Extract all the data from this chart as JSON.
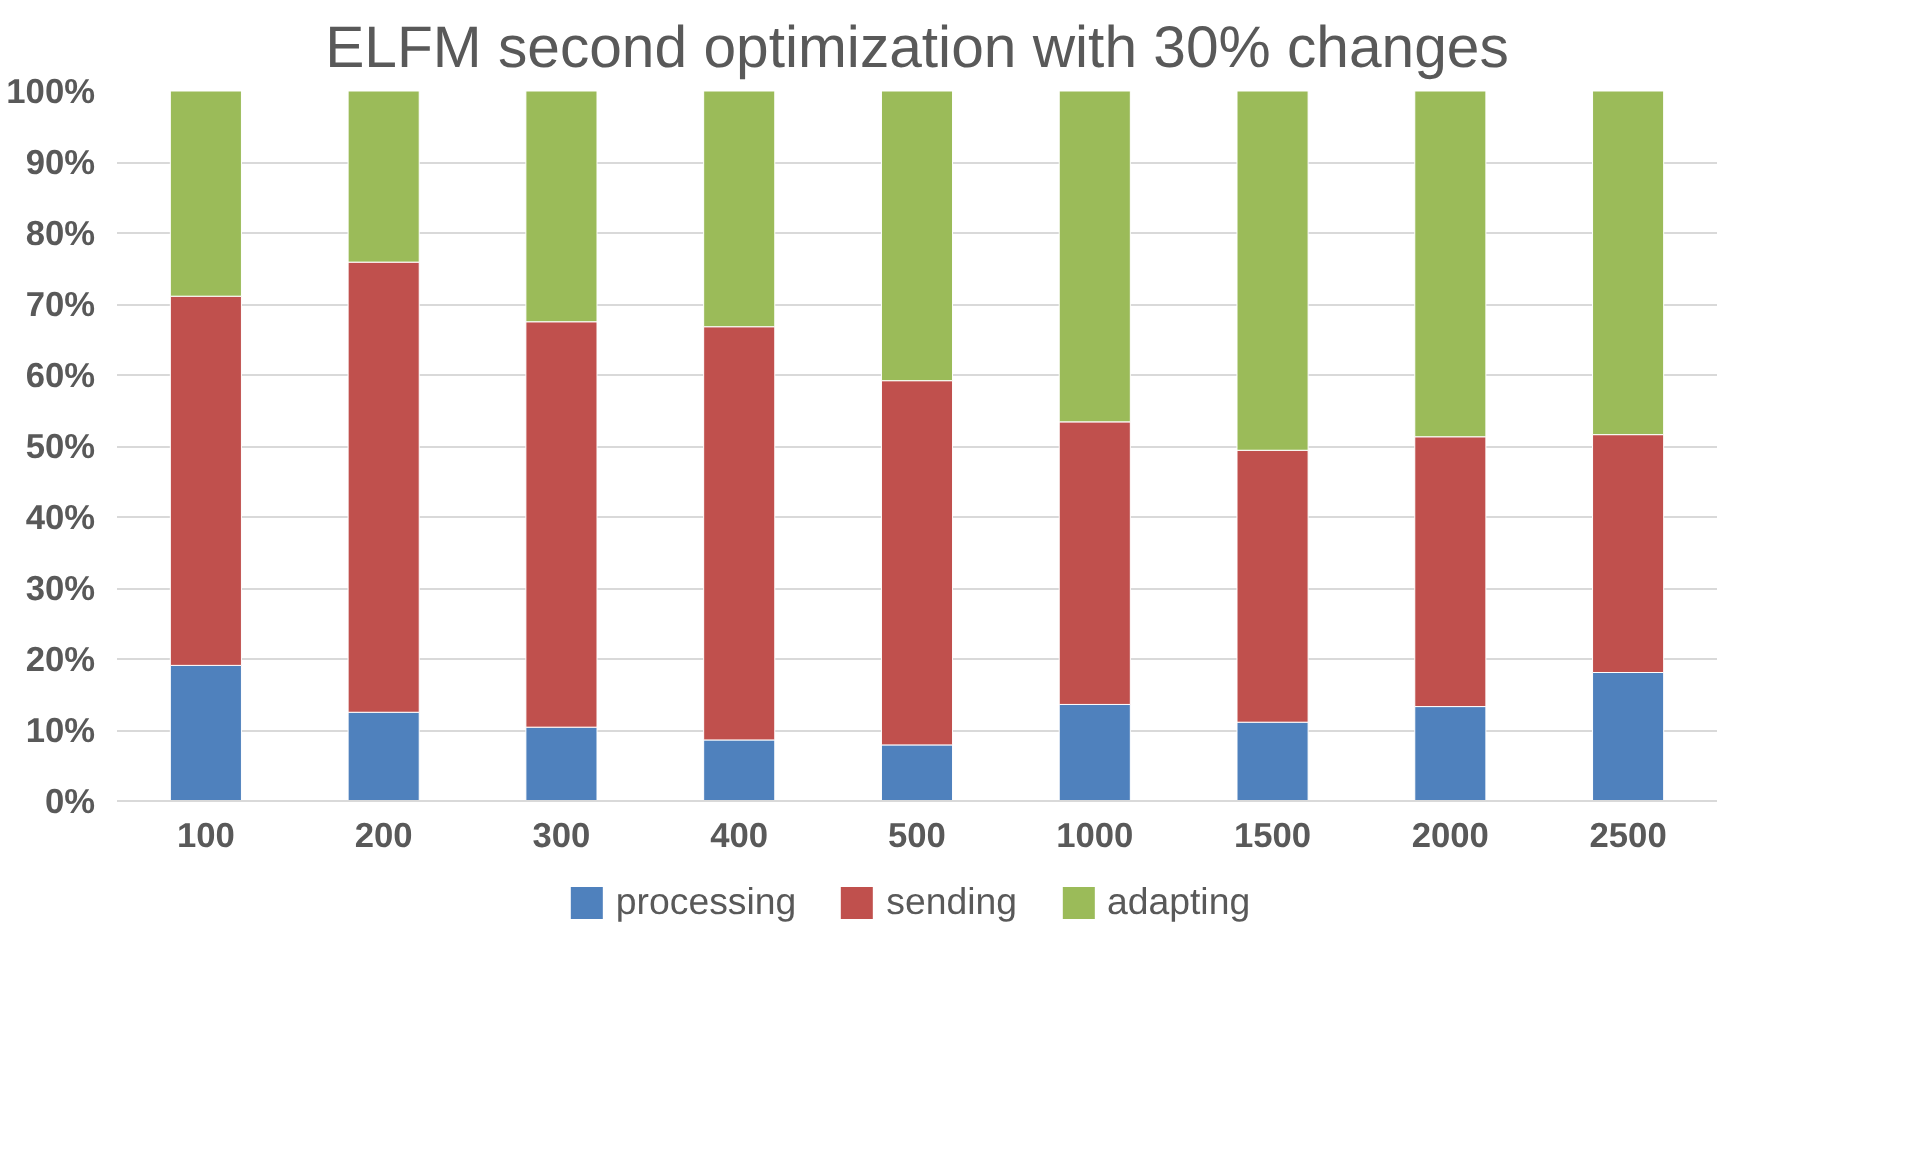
{
  "chart_data": {
    "type": "bar",
    "title": "ELFM second optimization with 30% changes",
    "stacked": true,
    "categories": [
      "100",
      "200",
      "300",
      "400",
      "500",
      "1000",
      "1500",
      "2000",
      "2500"
    ],
    "series": [
      {
        "name": "processing",
        "color": "#4f81bd",
        "values": [
          19.1,
          12.5,
          10.4,
          8.6,
          7.9,
          13.6,
          11.1,
          13.3,
          18.1
        ]
      },
      {
        "name": "sending",
        "color": "#c0504d",
        "values": [
          52.0,
          63.4,
          57.1,
          58.2,
          51.3,
          39.8,
          38.3,
          38.0,
          33.5
        ]
      },
      {
        "name": "adapting",
        "color": "#9bbb59",
        "values": [
          28.9,
          24.1,
          32.5,
          33.2,
          40.8,
          46.6,
          50.6,
          48.7,
          48.4
        ]
      }
    ],
    "ylim": [
      0,
      100
    ],
    "yticks": [
      {
        "value": 0,
        "label": "0%"
      },
      {
        "value": 10,
        "label": "10%"
      },
      {
        "value": 20,
        "label": "20%"
      },
      {
        "value": 30,
        "label": "30%"
      },
      {
        "value": 40,
        "label": "40%"
      },
      {
        "value": 50,
        "label": "50%"
      },
      {
        "value": 60,
        "label": "60%"
      },
      {
        "value": 70,
        "label": "70%"
      },
      {
        "value": 80,
        "label": "80%"
      },
      {
        "value": 90,
        "label": "90%"
      },
      {
        "value": 100,
        "label": "100%"
      }
    ],
    "grid": "y",
    "legend": "bottom"
  }
}
